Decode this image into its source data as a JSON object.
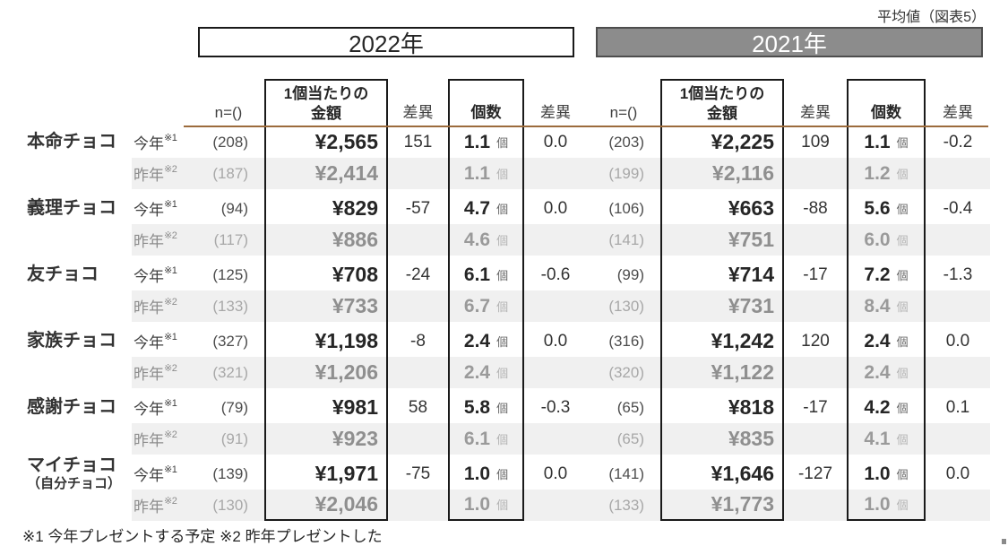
{
  "caption": "平均値（図表5）",
  "year_2022": "2022年",
  "year_2021": "2021年",
  "columns": {
    "n": "n=()",
    "amount_line1": "1個当たりの",
    "amount_line2": "金額",
    "diff": "差異",
    "count": "個数",
    "unit": "個"
  },
  "period": {
    "this_year": "今年",
    "this_note": "※1",
    "last_year": "昨年",
    "last_note": "※2"
  },
  "footnote": "※1 今年プレゼントする予定 ※2 昨年プレゼントした",
  "colors": {
    "accent_rule": "#9c6b3c",
    "bar_2021_bg": "#8c8c8c",
    "bar_2021_text": "#ffffff",
    "row_alt_bg": "#f0f0f0",
    "box_border": "#1a1a1a",
    "muted_text": "#8c8c8c"
  },
  "chart_data": {
    "type": "table",
    "title": "平均値（図表5）",
    "column_groups": [
      "2022年",
      "2021年"
    ],
    "columns_per_group": [
      "n=()",
      "1個当たりの金額",
      "差異",
      "個数",
      "差異"
    ],
    "row_periods": [
      "今年※1",
      "昨年※2"
    ],
    "groups": [
      {
        "label": "本命チョコ",
        "sublabel": "",
        "this_year": {
          "n": "(208)",
          "amount": "¥2,565",
          "amount_diff": "151",
          "count": "1.1",
          "count_diff": "0.0",
          "n_2021": "(203)",
          "amount_2021": "¥2,225",
          "amount_diff_2021": "109",
          "count_2021": "1.1",
          "count_diff_2021": "-0.2"
        },
        "last_year": {
          "n": "(187)",
          "amount": "¥2,414",
          "count": "1.1",
          "n_2021": "(199)",
          "amount_2021": "¥2,116",
          "count_2021": "1.2"
        }
      },
      {
        "label": "義理チョコ",
        "sublabel": "",
        "this_year": {
          "n": "(94)",
          "amount": "¥829",
          "amount_diff": "-57",
          "count": "4.7",
          "count_diff": "0.0",
          "n_2021": "(106)",
          "amount_2021": "¥663",
          "amount_diff_2021": "-88",
          "count_2021": "5.6",
          "count_diff_2021": "-0.4"
        },
        "last_year": {
          "n": "(117)",
          "amount": "¥886",
          "count": "4.6",
          "n_2021": "(141)",
          "amount_2021": "¥751",
          "count_2021": "6.0"
        }
      },
      {
        "label": "友チョコ",
        "sublabel": "",
        "this_year": {
          "n": "(125)",
          "amount": "¥708",
          "amount_diff": "-24",
          "count": "6.1",
          "count_diff": "-0.6",
          "n_2021": "(99)",
          "amount_2021": "¥714",
          "amount_diff_2021": "-17",
          "count_2021": "7.2",
          "count_diff_2021": "-1.3"
        },
        "last_year": {
          "n": "(133)",
          "amount": "¥733",
          "count": "6.7",
          "n_2021": "(130)",
          "amount_2021": "¥731",
          "count_2021": "8.4"
        }
      },
      {
        "label": "家族チョコ",
        "sublabel": "",
        "this_year": {
          "n": "(327)",
          "amount": "¥1,198",
          "amount_diff": "-8",
          "count": "2.4",
          "count_diff": "0.0",
          "n_2021": "(316)",
          "amount_2021": "¥1,242",
          "amount_diff_2021": "120",
          "count_2021": "2.4",
          "count_diff_2021": "0.0"
        },
        "last_year": {
          "n": "(321)",
          "amount": "¥1,206",
          "count": "2.4",
          "n_2021": "(320)",
          "amount_2021": "¥1,122",
          "count_2021": "2.4"
        }
      },
      {
        "label": "感謝チョコ",
        "sublabel": "",
        "this_year": {
          "n": "(79)",
          "amount": "¥981",
          "amount_diff": "58",
          "count": "5.8",
          "count_diff": "-0.3",
          "n_2021": "(65)",
          "amount_2021": "¥818",
          "amount_diff_2021": "-17",
          "count_2021": "4.2",
          "count_diff_2021": "0.1"
        },
        "last_year": {
          "n": "(91)",
          "amount": "¥923",
          "count": "6.1",
          "n_2021": "(65)",
          "amount_2021": "¥835",
          "count_2021": "4.1"
        }
      },
      {
        "label": "マイチョコ",
        "sublabel": "（自分チョコ）",
        "this_year": {
          "n": "(139)",
          "amount": "¥1,971",
          "amount_diff": "-75",
          "count": "1.0",
          "count_diff": "0.0",
          "n_2021": "(141)",
          "amount_2021": "¥1,646",
          "amount_diff_2021": "-127",
          "count_2021": "1.0",
          "count_diff_2021": "0.0"
        },
        "last_year": {
          "n": "(130)",
          "amount": "¥2,046",
          "count": "1.0",
          "n_2021": "(133)",
          "amount_2021": "¥1,773",
          "count_2021": "1.0"
        }
      }
    ]
  }
}
